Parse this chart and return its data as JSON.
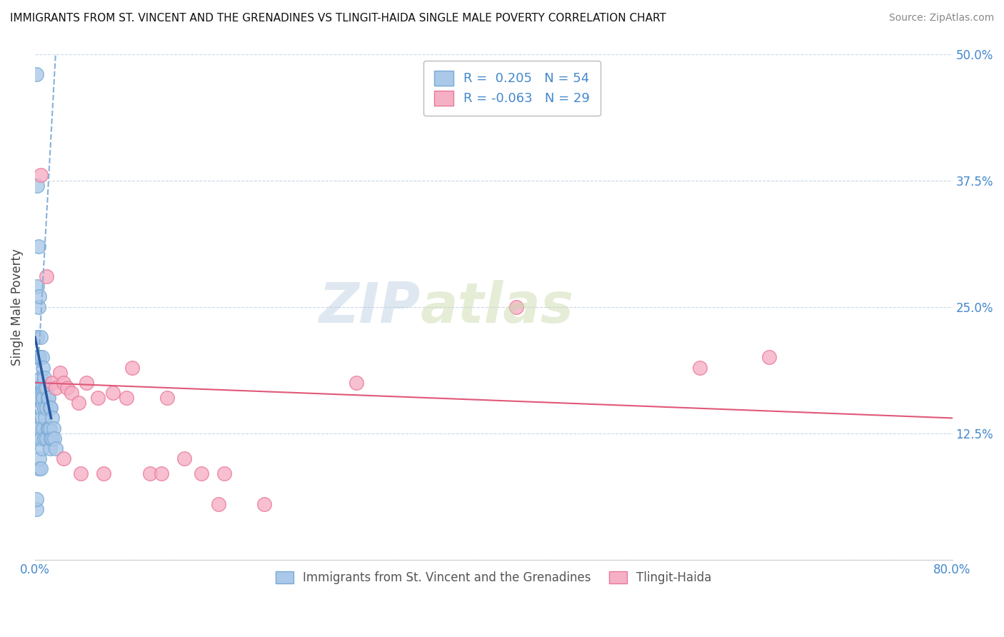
{
  "title": "IMMIGRANTS FROM ST. VINCENT AND THE GRENADINES VS TLINGIT-HAIDA SINGLE MALE POVERTY CORRELATION CHART",
  "source": "Source: ZipAtlas.com",
  "ylabel": "Single Male Poverty",
  "xlim": [
    0.0,
    0.8
  ],
  "ylim": [
    0.0,
    0.5
  ],
  "yticks": [
    0.0,
    0.125,
    0.25,
    0.375,
    0.5
  ],
  "yticklabels_right": [
    "",
    "12.5%",
    "25.0%",
    "37.5%",
    "50.0%"
  ],
  "xtick_left_label": "0.0%",
  "xtick_right_label": "80.0%",
  "blue_R": 0.205,
  "blue_N": 54,
  "pink_R": -0.063,
  "pink_N": 29,
  "blue_color": "#aac8e8",
  "pink_color": "#f5b0c5",
  "blue_edge_color": "#78aad4",
  "pink_edge_color": "#e87898",
  "trend_blue_dashed_color": "#88b0d8",
  "trend_blue_solid_color": "#2858a0",
  "trend_pink_color": "#e05878",
  "watermark_color": "#c5d8ec",
  "grid_color": "#c8d8e8",
  "axis_label_color": "#4488cc",
  "right_tick_color": "#4488cc",
  "blue_scatter_x": [
    0.001,
    0.001,
    0.001,
    0.002,
    0.002,
    0.002,
    0.002,
    0.002,
    0.003,
    0.003,
    0.003,
    0.003,
    0.003,
    0.003,
    0.004,
    0.004,
    0.004,
    0.004,
    0.004,
    0.005,
    0.005,
    0.005,
    0.005,
    0.005,
    0.006,
    0.006,
    0.006,
    0.006,
    0.007,
    0.007,
    0.007,
    0.008,
    0.008,
    0.008,
    0.009,
    0.009,
    0.01,
    0.01,
    0.01,
    0.011,
    0.011,
    0.012,
    0.012,
    0.013,
    0.013,
    0.013,
    0.014,
    0.014,
    0.015,
    0.015,
    0.016,
    0.017,
    0.018,
    0.001
  ],
  "blue_scatter_y": [
    0.48,
    0.2,
    0.05,
    0.37,
    0.27,
    0.22,
    0.16,
    0.12,
    0.31,
    0.25,
    0.2,
    0.17,
    0.13,
    0.09,
    0.26,
    0.2,
    0.16,
    0.13,
    0.1,
    0.22,
    0.18,
    0.15,
    0.12,
    0.09,
    0.2,
    0.17,
    0.14,
    0.11,
    0.19,
    0.16,
    0.13,
    0.18,
    0.15,
    0.12,
    0.17,
    0.14,
    0.17,
    0.15,
    0.12,
    0.16,
    0.13,
    0.16,
    0.13,
    0.15,
    0.13,
    0.11,
    0.15,
    0.12,
    0.14,
    0.12,
    0.13,
    0.12,
    0.11,
    0.06
  ],
  "pink_scatter_x": [
    0.005,
    0.01,
    0.015,
    0.018,
    0.022,
    0.025,
    0.028,
    0.032,
    0.038,
    0.045,
    0.055,
    0.068,
    0.08,
    0.085,
    0.1,
    0.115,
    0.13,
    0.145,
    0.165,
    0.2,
    0.28,
    0.42,
    0.58,
    0.64,
    0.025,
    0.04,
    0.06,
    0.11,
    0.16
  ],
  "pink_scatter_y": [
    0.38,
    0.28,
    0.175,
    0.17,
    0.185,
    0.175,
    0.17,
    0.165,
    0.155,
    0.175,
    0.16,
    0.165,
    0.16,
    0.19,
    0.085,
    0.16,
    0.1,
    0.085,
    0.085,
    0.055,
    0.175,
    0.25,
    0.19,
    0.2,
    0.1,
    0.085,
    0.085,
    0.085,
    0.055
  ],
  "legend_label_blue": "Immigrants from St. Vincent and the Grenadines",
  "legend_label_pink": "Tlingit-Haida"
}
